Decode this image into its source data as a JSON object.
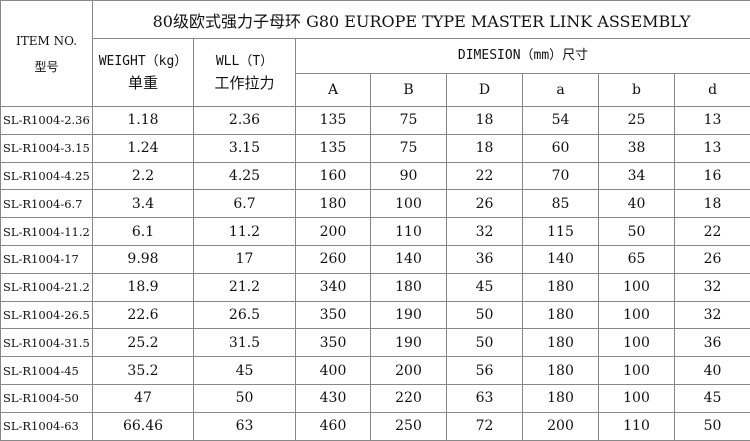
{
  "title": "80级欧式强力子母环  G80 EUROPE TYPE MASTER LINK ASSEMBLY",
  "headers": {
    "item_en": "ITEM NO.",
    "item_cn": "型号",
    "weight_en": "WEIGHT（kg）",
    "weight_cn": "单重",
    "wll_en": "WLL（T）",
    "wll_cn": "工作拉力",
    "dimension": "DIMESION（mm）尺寸",
    "dims": [
      "A",
      "B",
      "D",
      "a",
      "b",
      "d"
    ]
  },
  "rows": [
    [
      "SL-R1004-2.36",
      "1.18",
      "2.36",
      "135",
      "75",
      "18",
      "54",
      "25",
      "13"
    ],
    [
      "SL-R1004-3.15",
      "1.24",
      "3.15",
      "135",
      "75",
      "18",
      "60",
      "38",
      "13"
    ],
    [
      "SL-R1004-4.25",
      "2.2",
      "4.25",
      "160",
      "90",
      "22",
      "70",
      "34",
      "16"
    ],
    [
      "SL-R1004-6.7",
      "3.4",
      "6.7",
      "180",
      "100",
      "26",
      "85",
      "40",
      "18"
    ],
    [
      "SL-R1004-11.2",
      "6.1",
      "11.2",
      "200",
      "110",
      "32",
      "115",
      "50",
      "22"
    ],
    [
      "SL-R1004-17",
      "9.98",
      "17",
      "260",
      "140",
      "36",
      "140",
      "65",
      "26"
    ],
    [
      "SL-R1004-21.2",
      "18.9",
      "21.2",
      "340",
      "180",
      "45",
      "180",
      "100",
      "32"
    ],
    [
      "SL-R1004-26.5",
      "22.6",
      "26.5",
      "350",
      "190",
      "50",
      "180",
      "100",
      "32"
    ],
    [
      "SL-R1004-31.5",
      "25.2",
      "31.5",
      "350",
      "190",
      "50",
      "180",
      "100",
      "36"
    ],
    [
      "SL-R1004-45",
      "35.2",
      "45",
      "400",
      "200",
      "56",
      "180",
      "100",
      "40"
    ],
    [
      "SL-R1004-50",
      "47",
      "50",
      "430",
      "220",
      "63",
      "180",
      "100",
      "45"
    ],
    [
      "SL-R1004-63",
      "66.46",
      "63",
      "460",
      "250",
      "72",
      "200",
      "110",
      "50"
    ]
  ]
}
